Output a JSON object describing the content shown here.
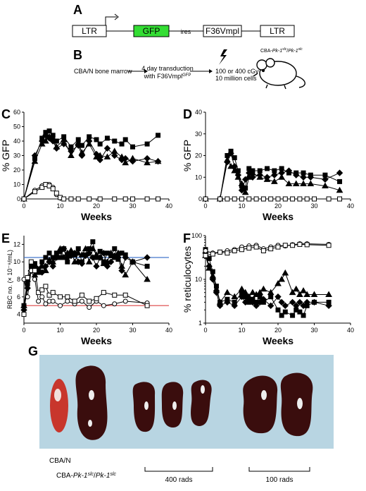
{
  "panels": {
    "A": {
      "letter": "A",
      "boxes": [
        "LTR",
        "GFP",
        "ires",
        "F36Vmpl",
        "LTR"
      ],
      "colors": {
        "gfp": "#33dd33"
      }
    },
    "B": {
      "letter": "B",
      "source": "CBA/N bone marrow",
      "step1": "4 day transduction",
      "step2_prefix": "with F36Vmpl",
      "step2_sup": "GFP",
      "dose": "100 or 400 cGy",
      "cells": "10 million cells",
      "recipient_prefix": "CBA-",
      "recipient_gene": "Pk-1",
      "recipient_sup": "slc",
      "recipient_sep": "/"
    },
    "G": {
      "letter": "G",
      "label_control": "CBA/N",
      "label_mut_prefix": "CBA-",
      "label_mut_gene": "Pk-1",
      "label_mut_sup": "slc",
      "label_mut_sep": "/",
      "label_400": "400 rads",
      "label_100": "100 rads"
    }
  },
  "chart_data": [
    {
      "id": "C",
      "letter": "C",
      "type": "line",
      "ylabel": "% GFP",
      "xlabel": "Weeks",
      "xlim": [
        0,
        40
      ],
      "ylim": [
        0,
        60
      ],
      "log": false,
      "xticks": [
        0,
        10,
        20,
        30,
        40
      ],
      "yticks": [
        0,
        10,
        20,
        30,
        40,
        50,
        60
      ],
      "series": [
        {
          "marker": "square-filled",
          "x": [
            0,
            3,
            5,
            6,
            7,
            8,
            9,
            11,
            13,
            15,
            16,
            18,
            20,
            21,
            23,
            25,
            27,
            28,
            30,
            34,
            37
          ],
          "y": [
            0,
            28,
            42,
            46,
            47,
            44,
            40,
            43,
            36,
            41,
            37,
            43,
            41,
            38,
            42,
            40,
            38,
            41,
            36,
            38,
            44
          ]
        },
        {
          "marker": "diamond-filled",
          "x": [
            0,
            3,
            5,
            6,
            7,
            8,
            9,
            11,
            13,
            15,
            16,
            18,
            20,
            21,
            23,
            25,
            27,
            28,
            30,
            34,
            37
          ],
          "y": [
            0,
            30,
            40,
            44,
            42,
            40,
            35,
            38,
            33,
            37,
            30,
            40,
            31,
            27,
            35,
            30,
            27,
            28,
            26,
            28,
            26
          ]
        },
        {
          "marker": "triangle-filled",
          "x": [
            0,
            3,
            5,
            6,
            7,
            8,
            9,
            11,
            13,
            15,
            16,
            18,
            20,
            21,
            23,
            25,
            27,
            28,
            30,
            34,
            37
          ],
          "y": [
            0,
            26,
            38,
            40,
            43,
            42,
            36,
            41,
            30,
            39,
            32,
            38,
            29,
            30,
            29,
            33,
            29,
            25,
            28,
            25,
            26
          ]
        },
        {
          "marker": "circle-open",
          "x": [
            0,
            3,
            5,
            6,
            7,
            8,
            9,
            10,
            11,
            13,
            15,
            18,
            21,
            25,
            28,
            30,
            34,
            37
          ],
          "y": [
            0,
            6,
            9,
            10,
            10,
            8,
            3,
            1,
            0,
            0,
            0,
            0,
            0,
            0,
            0,
            0,
            0,
            0
          ]
        },
        {
          "marker": "square-open",
          "x": [
            0,
            3,
            5,
            6,
            7,
            8,
            9,
            10,
            11,
            13,
            15,
            18,
            21,
            25,
            28,
            30,
            34,
            37
          ],
          "y": [
            0,
            5,
            8,
            10,
            9,
            7,
            4,
            1,
            0,
            0,
            0,
            0,
            0,
            0,
            0,
            0,
            0,
            0
          ]
        }
      ]
    },
    {
      "id": "D",
      "letter": "D",
      "type": "line",
      "ylabel": "% GFP",
      "xlabel": "Weeks",
      "xlim": [
        0,
        40
      ],
      "ylim": [
        0,
        40
      ],
      "log": false,
      "xticks": [
        0,
        10,
        20,
        30,
        40
      ],
      "yticks": [
        0,
        10,
        20,
        30,
        40
      ],
      "series": [
        {
          "marker": "square-filled",
          "x": [
            0,
            4,
            6,
            7,
            8,
            9,
            10,
            11,
            12,
            13,
            15,
            17,
            19,
            21,
            23,
            25,
            27,
            29,
            33,
            37
          ],
          "y": [
            0,
            0,
            20,
            22,
            19,
            13,
            6,
            5,
            14,
            13,
            13,
            14,
            13,
            14,
            12,
            12,
            12,
            11,
            11,
            8
          ]
        },
        {
          "marker": "diamond-filled",
          "x": [
            0,
            4,
            6,
            7,
            8,
            9,
            10,
            11,
            12,
            13,
            15,
            17,
            19,
            21,
            23,
            25,
            27,
            29,
            33,
            37
          ],
          "y": [
            0,
            0,
            17,
            21,
            15,
            11,
            4,
            9,
            12,
            10,
            11,
            10,
            11,
            12,
            13,
            11,
            10,
            10,
            9,
            12
          ]
        },
        {
          "marker": "triangle-filled",
          "x": [
            0,
            4,
            6,
            7,
            8,
            9,
            10,
            11,
            12,
            13,
            15,
            17,
            19,
            21,
            23,
            25,
            27,
            29,
            33,
            37
          ],
          "y": [
            0,
            0,
            18,
            15,
            13,
            10,
            7,
            3,
            10,
            12,
            10,
            9,
            8,
            10,
            7,
            7,
            7,
            7,
            6,
            4
          ]
        },
        {
          "marker": "circle-open",
          "x": [
            0,
            4,
            6,
            8,
            10,
            12,
            14,
            16,
            18,
            20,
            22,
            24,
            26,
            28,
            30,
            34,
            37
          ],
          "y": [
            0,
            0,
            0,
            0,
            0,
            0,
            0,
            0,
            0,
            0,
            0,
            0,
            0,
            0,
            0,
            0,
            0
          ]
        },
        {
          "marker": "square-open",
          "x": [
            0,
            4,
            6,
            8,
            10,
            12,
            14,
            16,
            18,
            20,
            22,
            24,
            26,
            28,
            30,
            34,
            37
          ],
          "y": [
            0,
            0,
            0,
            0,
            0,
            0,
            0,
            0,
            0,
            0,
            0,
            0,
            0,
            0,
            0,
            0,
            0
          ]
        }
      ]
    },
    {
      "id": "E",
      "letter": "E",
      "type": "line",
      "ylabel": "RBC no. (× 10⁻⁹/mL)",
      "xlabel": "Weeks",
      "xlim": [
        0,
        40
      ],
      "ylim": [
        3,
        13
      ],
      "log": false,
      "xticks": [
        0,
        10,
        20,
        30,
        40
      ],
      "yticks": [
        4,
        6,
        8,
        10,
        12
      ],
      "hlines": [
        {
          "y": 10.5,
          "color": "#4477cc"
        },
        {
          "y": 5.0,
          "color": "#dd4444"
        }
      ],
      "series": [
        {
          "marker": "square-filled",
          "x": [
            0,
            1,
            2,
            3,
            4,
            5,
            6,
            7,
            8,
            9,
            10,
            11,
            12,
            13,
            14,
            15,
            16,
            17,
            18,
            19,
            20,
            21,
            22,
            23,
            24,
            25,
            26,
            27,
            28,
            30,
            34
          ],
          "y": [
            5,
            7.5,
            9.5,
            9.8,
            9.2,
            10,
            10.5,
            11,
            10.5,
            11,
            10.5,
            11.5,
            10,
            11,
            10.8,
            11.5,
            10,
            10.8,
            11.5,
            12.3,
            10.5,
            11.2,
            10,
            11,
            10.7,
            11.5,
            10.3,
            11,
            10.8,
            10,
            9.5
          ]
        },
        {
          "marker": "diamond-filled",
          "x": [
            0,
            1,
            2,
            3,
            4,
            5,
            6,
            7,
            8,
            9,
            10,
            11,
            12,
            13,
            14,
            15,
            16,
            17,
            18,
            19,
            20,
            21,
            22,
            23,
            24,
            25,
            26,
            27,
            28,
            30,
            34
          ],
          "y": [
            4.5,
            7,
            9,
            9.5,
            9,
            8.8,
            9.5,
            10,
            9.5,
            10.5,
            11.2,
            11.5,
            10.5,
            10.7,
            11,
            10,
            9.8,
            10.7,
            11,
            10.5,
            9.5,
            10.5,
            11,
            9.5,
            10,
            10.7,
            10.5,
            9,
            10.5,
            10,
            10.5
          ]
        },
        {
          "marker": "triangle-filled",
          "x": [
            0,
            1,
            2,
            3,
            4,
            5,
            6,
            7,
            8,
            9,
            10,
            11,
            12,
            13,
            14,
            15,
            16,
            17,
            18,
            19,
            20,
            21,
            22,
            23,
            24,
            25,
            26,
            27,
            28,
            30,
            34
          ],
          "y": [
            5,
            8,
            9.2,
            8.5,
            8.8,
            9.5,
            9,
            10.2,
            10,
            10.5,
            11.5,
            10.5,
            11,
            11.3,
            10,
            11,
            10.8,
            11.5,
            10,
            11.5,
            10.8,
            10.5,
            9.8,
            10,
            11,
            10.5,
            11,
            9.5,
            8.5,
            10,
            8
          ]
        },
        {
          "marker": "circle-open",
          "x": [
            0,
            1,
            2,
            3,
            4,
            5,
            6,
            7,
            8,
            10,
            12,
            14,
            16,
            18,
            20,
            22,
            25,
            28,
            34
          ],
          "y": [
            8,
            6,
            9,
            8,
            5.5,
            6,
            5.2,
            5.5,
            5.5,
            5,
            5.5,
            5.2,
            5.5,
            4.8,
            5.5,
            5,
            5.2,
            5.5,
            5.3
          ]
        },
        {
          "marker": "square-open",
          "x": [
            0,
            1,
            2,
            3,
            4,
            5,
            6,
            7,
            8,
            10,
            12,
            14,
            16,
            18,
            20,
            22,
            25,
            28,
            34
          ],
          "y": [
            4,
            8.2,
            10,
            9,
            6.5,
            6.8,
            7.2,
            6.2,
            6.5,
            6,
            6,
            5.5,
            6.2,
            5.5,
            5.8,
            6.5,
            6.2,
            6.2,
            5
          ]
        }
      ]
    },
    {
      "id": "F",
      "letter": "F",
      "type": "line",
      "ylabel": "% reticulocytes",
      "xlabel": "Weeks",
      "xlim": [
        0,
        40
      ],
      "ylim": [
        1,
        100
      ],
      "log": true,
      "xticks": [
        0,
        10,
        20,
        30,
        40
      ],
      "yticks": [
        1,
        10,
        100
      ],
      "ytick_labels": [
        "1",
        "10",
        "100"
      ],
      "series": [
        {
          "marker": "square-filled",
          "x": [
            0,
            1,
            2,
            3,
            4,
            6,
            8,
            10,
            11,
            12,
            13,
            14,
            15,
            16,
            18,
            20,
            21,
            22,
            24,
            25,
            26,
            27,
            28,
            30,
            34
          ],
          "y": [
            48,
            30,
            15,
            7,
            3,
            3.5,
            3,
            5,
            4,
            3,
            3.5,
            3,
            4,
            3,
            4,
            2,
            1.5,
            1.8,
            1.5,
            2,
            1.8,
            1.5,
            2.5,
            3,
            3
          ]
        },
        {
          "marker": "diamond-filled",
          "x": [
            0,
            1,
            2,
            3,
            4,
            6,
            8,
            10,
            11,
            12,
            13,
            14,
            15,
            16,
            18,
            20,
            21,
            22,
            24,
            25,
            26,
            27,
            28,
            30,
            34
          ],
          "y": [
            40,
            20,
            10,
            5,
            2.5,
            3,
            2.5,
            4,
            3,
            3.5,
            3,
            2.5,
            3,
            3.5,
            2.5,
            4,
            3,
            2.5,
            3,
            2.5,
            3,
            2.5,
            3,
            3,
            2.5
          ]
        },
        {
          "marker": "triangle-filled",
          "x": [
            0,
            1,
            2,
            3,
            4,
            6,
            8,
            10,
            11,
            12,
            13,
            14,
            15,
            16,
            18,
            20,
            21,
            22,
            24,
            25,
            26,
            27,
            28,
            30,
            34
          ],
          "y": [
            35,
            18,
            12,
            6,
            3,
            5,
            4,
            6,
            5,
            4,
            5,
            4.5,
            5,
            6,
            5,
            8,
            10,
            14,
            5,
            6,
            4.5,
            5.5,
            4.5,
            4.5,
            4.5
          ]
        },
        {
          "marker": "circle-open",
          "x": [
            0,
            2,
            4,
            6,
            8,
            10,
            12,
            14,
            16,
            18,
            20,
            22,
            24,
            26,
            28,
            34
          ],
          "y": [
            45,
            40,
            42,
            45,
            48,
            55,
            58,
            60,
            50,
            55,
            60,
            58,
            62,
            65,
            65,
            63
          ]
        },
        {
          "marker": "square-open",
          "x": [
            0,
            2,
            4,
            6,
            8,
            10,
            12,
            14,
            16,
            18,
            20,
            22,
            24,
            26,
            28,
            34
          ],
          "y": [
            35,
            38,
            42,
            40,
            45,
            48,
            52,
            55,
            45,
            50,
            55,
            60,
            60,
            63,
            62,
            60
          ]
        }
      ]
    }
  ]
}
